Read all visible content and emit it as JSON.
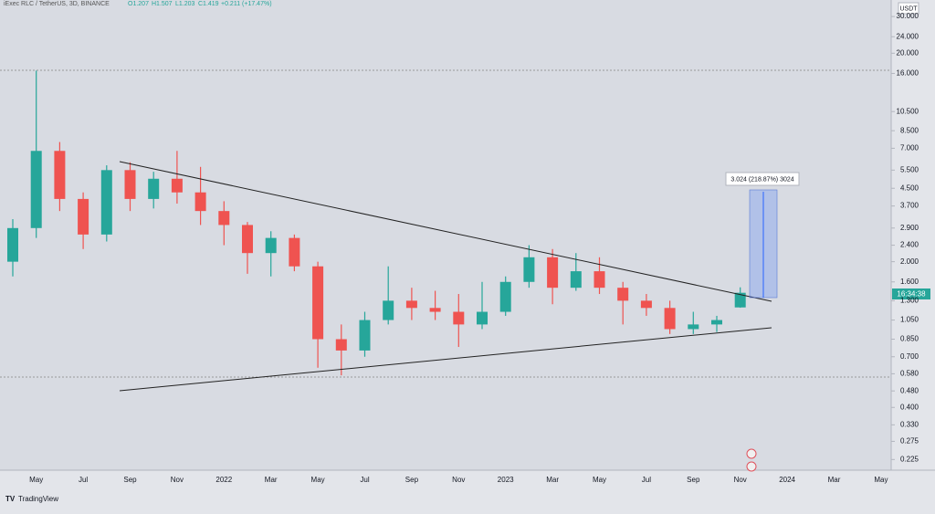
{
  "header": {
    "title": "iExec RLC / TetherUS, 3D, BINANCE",
    "ohlc": [
      "O1.207",
      "H1.507",
      "L1.203",
      "C1.419",
      "+0.211 (+17.47%)"
    ]
  },
  "currency": "USDT",
  "countdown": "16:34:38",
  "measure_label": "3.024 (218.87%) 3024",
  "footer": "TradingView",
  "chart_data": {
    "type": "candlestick",
    "log_scale": true,
    "categories": [
      null,
      "May",
      null,
      "Jul",
      null,
      "Sep",
      null,
      "Nov",
      null,
      "2022",
      null,
      "Mar",
      null,
      "May",
      null,
      "Jul",
      null,
      "Sep",
      null,
      "Nov",
      null,
      "2023",
      null,
      "Mar",
      null,
      "May",
      null,
      "Jul",
      null,
      "Sep",
      null,
      "Nov",
      null,
      "2024",
      null,
      "Mar",
      null,
      "May"
    ],
    "open": [
      2.0,
      2.9,
      6.8,
      4.0,
      2.7,
      5.5,
      4.0,
      5.0,
      4.3,
      3.5,
      3.0,
      2.2,
      2.6,
      1.9,
      0.85,
      0.75,
      1.05,
      1.3,
      1.2,
      1.15,
      1.0,
      1.15,
      1.6,
      2.1,
      1.5,
      1.8,
      1.5,
      1.3,
      1.2,
      0.95,
      1.0,
      1.207,
      null,
      null,
      null,
      null,
      null,
      null
    ],
    "high": [
      3.2,
      16.5,
      7.5,
      4.3,
      5.8,
      6.0,
      5.4,
      6.8,
      5.7,
      3.9,
      3.1,
      2.8,
      2.7,
      2.0,
      1.0,
      1.15,
      1.9,
      1.5,
      1.45,
      1.4,
      1.6,
      1.7,
      2.4,
      2.3,
      2.2,
      2.1,
      1.6,
      1.4,
      1.3,
      1.15,
      1.1,
      1.507,
      null,
      null,
      null,
      null,
      null,
      null
    ],
    "low": [
      1.7,
      2.6,
      3.5,
      2.3,
      2.5,
      3.5,
      3.6,
      3.8,
      3.0,
      2.4,
      1.75,
      1.7,
      1.8,
      0.62,
      0.57,
      0.7,
      1.0,
      1.05,
      1.05,
      0.78,
      0.95,
      1.1,
      1.5,
      1.25,
      1.45,
      1.4,
      1.0,
      1.1,
      0.9,
      0.9,
      0.92,
      1.203,
      null,
      null,
      null,
      null,
      null,
      null
    ],
    "close": [
      2.9,
      6.8,
      4.0,
      2.7,
      5.5,
      4.0,
      5.0,
      4.3,
      3.5,
      3.0,
      2.2,
      2.6,
      1.9,
      0.85,
      0.75,
      1.05,
      1.3,
      1.2,
      1.15,
      1.0,
      1.15,
      1.6,
      2.1,
      1.5,
      1.8,
      1.5,
      1.3,
      1.2,
      0.95,
      1.0,
      1.05,
      1.419,
      null,
      null,
      null,
      null,
      null,
      null
    ],
    "up_color": "#26a69a",
    "down_color": "#ef5350",
    "ylim": [
      0.2,
      36
    ],
    "yticks": [
      0.225,
      0.275,
      {
        "value": 0.33,
        "label": "0.330"
      },
      {
        "value": 0.4,
        "label": "0.400"
      },
      {
        "value": 0.48,
        "label": "0.480"
      },
      {
        "value": 0.58,
        "label": "0.580"
      },
      {
        "value": 0.7,
        "label": "0.700"
      },
      {
        "value": 0.85,
        "label": "0.850"
      },
      {
        "value": 1.05,
        "label": "1.050"
      },
      {
        "value": 1.3,
        "label": "1.300"
      },
      {
        "value": 1.6,
        "label": "1.600"
      },
      {
        "value": 2.0,
        "label": "2.000"
      },
      {
        "value": 2.4,
        "label": "2.400"
      },
      {
        "value": 2.9,
        "label": "2.900"
      },
      {
        "value": 3.7,
        "label": "3.700"
      },
      {
        "value": 4.5,
        "label": "4.500"
      },
      {
        "value": 5.5,
        "label": "5.500"
      },
      {
        "value": 7.0,
        "label": "7.000"
      },
      {
        "value": 8.5,
        "label": "8.500"
      },
      {
        "value": 10.5,
        "label": "10.500"
      },
      {
        "value": 16.0,
        "label": "16.000"
      },
      {
        "value": 20.0,
        "label": "20.000"
      },
      {
        "value": 24.0,
        "label": "24.000"
      },
      {
        "value": 30.0,
        "label": "30.000"
      }
    ]
  }
}
